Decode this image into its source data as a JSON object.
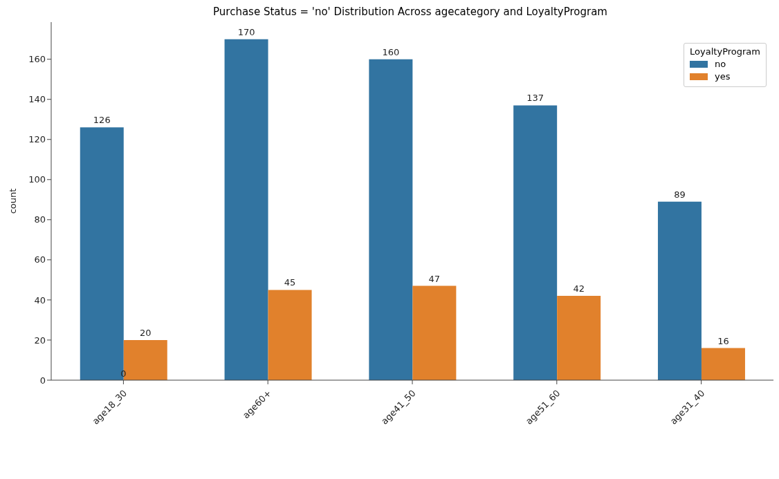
{
  "chart_data": {
    "type": "bar",
    "title": "Purchase Status = 'no' Distribution Across agecategory and LoyaltyProgram",
    "ylabel": "count",
    "categories": [
      "age18_30",
      "age60+",
      "age41_50",
      "age51_60",
      "age31_40"
    ],
    "series": [
      {
        "name": "no",
        "color": "#3274a1",
        "values": [
          126,
          170,
          160,
          137,
          89
        ]
      },
      {
        "name": "yes",
        "color": "#e1812c",
        "values": [
          20,
          45,
          47,
          42,
          16
        ]
      }
    ],
    "legend_title": "LoyaltyProgram",
    "legend": "top right",
    "data_labels": true,
    "grid": false,
    "ylim": [
      0,
      178.5
    ],
    "yticks": [
      0,
      20,
      40,
      60,
      80,
      100,
      120,
      140,
      160
    ],
    "annotations": [
      {
        "text": "0",
        "x": "age18_30",
        "y": 0
      }
    ]
  }
}
